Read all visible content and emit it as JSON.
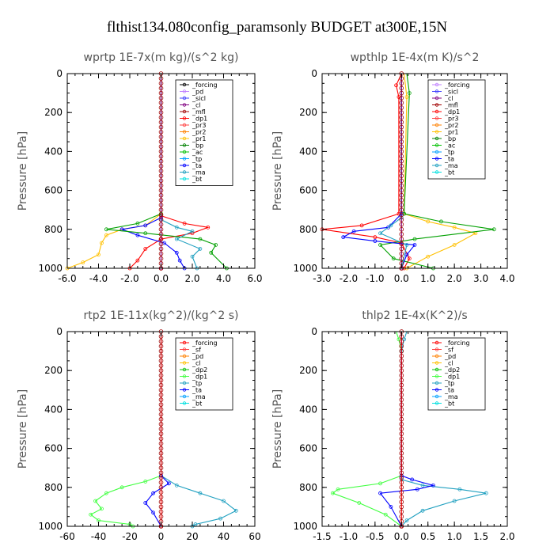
{
  "figure_title": "flthist134.080config_paramsonly  BUDGET at300E,15N",
  "ylabel": "Pressure [hPa]",
  "chart_data": [
    {
      "type": "line",
      "title": "wprtp  1E-7x(m kg)/(s^2 kg)",
      "ylabel": "Pressure [hPa]",
      "xlim": [
        -6,
        6
      ],
      "xticks": [
        "-6.0",
        "-4.0",
        "-2.0",
        "0.0",
        "2.0",
        "4.0",
        "6.0"
      ],
      "ylim": [
        0,
        1000
      ],
      "yticks": [
        "0",
        "200",
        "400",
        "600",
        "800",
        "1000"
      ],
      "legend": [
        "_forcing",
        "_pd",
        "_sicl",
        "_cl",
        "_mfl",
        "_dp1",
        "_pr3",
        "_pr2",
        "_pr1",
        "_bp",
        "_ac",
        "_tp",
        "_ta",
        "_ma",
        "_bt"
      ],
      "legend_colors": [
        "#000000",
        "#c080ff",
        "#4040ff",
        "#800080",
        "#a00000",
        "#ff0000",
        "#ff4040",
        "#ff8000",
        "#ffc000",
        "#008000",
        "#00c000",
        "#00a0ff",
        "#0000ff",
        "#20a0c0",
        "#00e0e0"
      ],
      "series": [
        {
          "color": "#ffc000",
          "points": [
            [
              0,
              0
            ],
            [
              0,
              720
            ],
            [
              -1.0,
              780
            ],
            [
              -2.5,
              800
            ],
            [
              -3.5,
              830
            ],
            [
              -3.8,
              870
            ],
            [
              -4.0,
              930
            ],
            [
              -5.0,
              970
            ],
            [
              -6.0,
              1000
            ]
          ]
        },
        {
          "color": "#ff0000",
          "points": [
            [
              0,
              0
            ],
            [
              0,
              730
            ],
            [
              1.5,
              770
            ],
            [
              3.0,
              790
            ],
            [
              2.0,
              820
            ],
            [
              0.0,
              850
            ],
            [
              -1.0,
              900
            ],
            [
              -1.5,
              960
            ],
            [
              -2.0,
              1000
            ]
          ]
        },
        {
          "color": "#0000ff",
          "points": [
            [
              0,
              0
            ],
            [
              0,
              740
            ],
            [
              -1.0,
              780
            ],
            [
              -2.5,
              800
            ],
            [
              -1.5,
              830
            ],
            [
              0.2,
              870
            ],
            [
              1.0,
              920
            ],
            [
              1.2,
              960
            ],
            [
              1.5,
              1000
            ]
          ]
        },
        {
          "color": "#00a000",
          "points": [
            [
              0,
              0
            ],
            [
              0,
              720
            ],
            [
              -1.5,
              770
            ],
            [
              -3.5,
              800
            ],
            [
              -1.0,
              820
            ],
            [
              2.5,
              850
            ],
            [
              3.5,
              880
            ],
            [
              3.2,
              920
            ],
            [
              4.2,
              1000
            ]
          ]
        },
        {
          "color": "#20a0c0",
          "points": [
            [
              0,
              0
            ],
            [
              0,
              750
            ],
            [
              1.0,
              790
            ],
            [
              2.0,
              810
            ],
            [
              1.0,
              850
            ],
            [
              2.5,
              900
            ],
            [
              2.0,
              940
            ],
            [
              2.3,
              1000
            ]
          ]
        },
        {
          "color": "#a00000",
          "points": [
            [
              0,
              0
            ],
            [
              0,
              1000
            ]
          ]
        },
        {
          "color": "#800080",
          "points": [
            [
              0,
              0
            ],
            [
              0,
              1000
            ]
          ]
        }
      ]
    },
    {
      "type": "line",
      "title": "wpthlp  1E-4x(m K)/s^2",
      "ylabel": "Pressure [hPa]",
      "xlim": [
        -3,
        4
      ],
      "xticks": [
        "-3.0",
        "-2.0",
        "-1.0",
        "0.0",
        "1.0",
        "2.0",
        "3.0",
        "4.0"
      ],
      "ylim": [
        0,
        1000
      ],
      "yticks": [
        "0",
        "200",
        "400",
        "600",
        "800",
        "1000"
      ],
      "legend": [
        "_forcing",
        "_sicl",
        "_cl",
        "_mfl",
        "_dp1",
        "_pr3",
        "_pr2",
        "_pr1",
        "_bp",
        "_ac",
        "_tp",
        "_ta",
        "_ma",
        "_bt"
      ],
      "legend_colors": [
        "#c080ff",
        "#4040ff",
        "#800080",
        "#a00000",
        "#ff0000",
        "#ff4040",
        "#ff8000",
        "#ffc000",
        "#008000",
        "#00c000",
        "#00a0ff",
        "#0000ff",
        "#20a0c0",
        "#00e0e0"
      ],
      "series": [
        {
          "color": "#ff0000",
          "points": [
            [
              0,
              0
            ],
            [
              -0.2,
              60
            ],
            [
              -0.1,
              120
            ],
            [
              -0.1,
              720
            ],
            [
              -1.5,
              780
            ],
            [
              -3.0,
              800
            ],
            [
              -1.0,
              840
            ],
            [
              0.0,
              870
            ],
            [
              0.3,
              950
            ],
            [
              0.1,
              1000
            ]
          ]
        },
        {
          "color": "#ffc000",
          "points": [
            [
              0.1,
              0
            ],
            [
              0.2,
              120
            ],
            [
              0.1,
              720
            ],
            [
              1.0,
              760
            ],
            [
              2.0,
              790
            ],
            [
              2.8,
              820
            ],
            [
              2.0,
              880
            ],
            [
              1.0,
              940
            ],
            [
              0.2,
              1000
            ]
          ]
        },
        {
          "color": "#00a000",
          "points": [
            [
              0.2,
              0
            ],
            [
              0.3,
              100
            ],
            [
              0.1,
              720
            ],
            [
              1.5,
              760
            ],
            [
              3.5,
              800
            ],
            [
              0.5,
              850
            ],
            [
              -0.8,
              880
            ],
            [
              -0.3,
              950
            ],
            [
              1.2,
              1000
            ]
          ]
        },
        {
          "color": "#0000ff",
          "points": [
            [
              0,
              0
            ],
            [
              0,
              720
            ],
            [
              -0.5,
              790
            ],
            [
              -1.8,
              810
            ],
            [
              -2.2,
              840
            ],
            [
              -1.0,
              860
            ],
            [
              0.5,
              880
            ],
            [
              0.2,
              930
            ],
            [
              0,
              1000
            ]
          ]
        },
        {
          "color": "#20a0c0",
          "points": [
            [
              0,
              0
            ],
            [
              0,
              740
            ],
            [
              -0.4,
              780
            ],
            [
              -0.8,
              820
            ],
            [
              0.2,
              880
            ],
            [
              0,
              1000
            ]
          ]
        },
        {
          "color": "#800080",
          "points": [
            [
              0,
              0
            ],
            [
              0,
              1000
            ]
          ]
        }
      ]
    },
    {
      "type": "line",
      "title": "rtp2  1E-11x(kg^2)/(kg^2 s)",
      "ylabel": "Pressure [hPa]",
      "xlim": [
        -60,
        60
      ],
      "xticks": [
        "-60",
        "-40",
        "-20",
        "0",
        "20",
        "40",
        "60"
      ],
      "ylim": [
        0,
        1000
      ],
      "yticks": [
        "0",
        "200",
        "400",
        "600",
        "800",
        "1000"
      ],
      "legend": [
        "_forcing",
        "_sf",
        "_pd",
        "_cl",
        "_dp2",
        "_dp1",
        "_tp",
        "_ta",
        "_ma",
        "_bt"
      ],
      "legend_colors": [
        "#ff0000",
        "#ff4040",
        "#ff8000",
        "#ffc000",
        "#00c000",
        "#40ff40",
        "#20a0c0",
        "#0000ff",
        "#00a0ff",
        "#00e0e0"
      ],
      "series": [
        {
          "color": "#40ff40",
          "points": [
            [
              0,
              0
            ],
            [
              0,
              740
            ],
            [
              -10,
              770
            ],
            [
              -25,
              800
            ],
            [
              -35,
              830
            ],
            [
              -42,
              870
            ],
            [
              -38,
              910
            ],
            [
              -45,
              940
            ],
            [
              -40,
              970
            ],
            [
              -20,
              990
            ],
            [
              -18,
              1000
            ]
          ]
        },
        {
          "color": "#20a0c0",
          "points": [
            [
              0,
              0
            ],
            [
              0,
              740
            ],
            [
              10,
              790
            ],
            [
              25,
              830
            ],
            [
              40,
              870
            ],
            [
              48,
              920
            ],
            [
              38,
              960
            ],
            [
              22,
              990
            ],
            [
              20,
              1000
            ]
          ]
        },
        {
          "color": "#0000ff",
          "points": [
            [
              0,
              0
            ],
            [
              0,
              740
            ],
            [
              5,
              780
            ],
            [
              -5,
              830
            ],
            [
              -10,
              880
            ],
            [
              -5,
              930
            ],
            [
              0,
              1000
            ]
          ]
        },
        {
          "color": "#ff0000",
          "points": [
            [
              0,
              0
            ],
            [
              0,
              1000
            ]
          ]
        }
      ]
    },
    {
      "type": "line",
      "title": "thlp2  1E-4x(K^2)/s",
      "ylabel": "Pressure [hPa]",
      "xlim": [
        -1.5,
        2.0
      ],
      "xticks": [
        "-1.5",
        "-1.0",
        "-0.5",
        "0.0",
        "0.5",
        "1.0",
        "1.5",
        "2.0"
      ],
      "ylim": [
        0,
        1000
      ],
      "yticks": [
        "0",
        "200",
        "400",
        "600",
        "800",
        "1000"
      ],
      "legend": [
        "_forcing",
        "_sf",
        "_pd",
        "_cl",
        "_dp2",
        "_dp1",
        "_tp",
        "_ta",
        "_ma",
        "_bt"
      ],
      "legend_colors": [
        "#ff0000",
        "#ff4040",
        "#ff8000",
        "#ffc000",
        "#00c000",
        "#40ff40",
        "#20a0c0",
        "#0000ff",
        "#00a0ff",
        "#00e0e0"
      ],
      "series": [
        {
          "color": "#40ff40",
          "points": [
            [
              -0.1,
              0
            ],
            [
              -0.05,
              40
            ],
            [
              0,
              100
            ],
            [
              0,
              740
            ],
            [
              -0.4,
              780
            ],
            [
              -1.2,
              810
            ],
            [
              -1.3,
              830
            ],
            [
              -0.8,
              880
            ],
            [
              -0.3,
              940
            ],
            [
              0,
              1000
            ]
          ]
        },
        {
          "color": "#20a0c0",
          "points": [
            [
              0.1,
              0
            ],
            [
              0.05,
              40
            ],
            [
              0,
              100
            ],
            [
              0,
              760
            ],
            [
              0.4,
              790
            ],
            [
              1.1,
              810
            ],
            [
              1.6,
              830
            ],
            [
              1.0,
              870
            ],
            [
              0.4,
              920
            ],
            [
              0.1,
              970
            ],
            [
              0,
              1000
            ]
          ]
        },
        {
          "color": "#0000ff",
          "points": [
            [
              0,
              0
            ],
            [
              0,
              740
            ],
            [
              0.2,
              760
            ],
            [
              0.6,
              790
            ],
            [
              0.3,
              810
            ],
            [
              -0.4,
              830
            ],
            [
              -0.2,
              900
            ],
            [
              0,
              1000
            ]
          ]
        },
        {
          "color": "#ff0000",
          "points": [
            [
              0,
              0
            ],
            [
              0,
              1000
            ]
          ]
        }
      ]
    }
  ]
}
